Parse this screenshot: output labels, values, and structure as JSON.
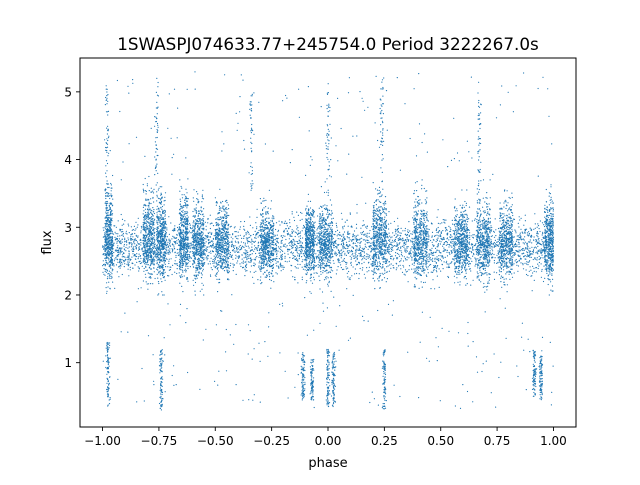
{
  "chart_data": {
    "type": "scatter",
    "title": "1SWASPJ074633.77+245754.0 Period 3222267.0s",
    "xlabel": "phase",
    "ylabel": "flux",
    "xlim": [
      -1.1,
      1.1
    ],
    "ylim": [
      0.05,
      5.5
    ],
    "x_ticks": [
      -1.0,
      -0.75,
      -0.5,
      -0.25,
      0.0,
      0.25,
      0.5,
      0.75,
      1.0
    ],
    "x_tick_labels": [
      "−1.00",
      "−0.75",
      "−0.50",
      "−0.25",
      "0.00",
      "0.25",
      "0.50",
      "0.75",
      "1.00"
    ],
    "y_ticks": [
      1,
      2,
      3,
      4,
      5
    ],
    "y_tick_labels": [
      "1",
      "2",
      "3",
      "4",
      "5"
    ],
    "grid": false,
    "legend": "none",
    "marker_color": "#1f77b4",
    "series": [
      {
        "x_range": [
          -1.0,
          1.0
        ],
        "core_flux_range": [
          2.1,
          3.7
        ],
        "core_flux_center": 2.7,
        "sparse_outlier_flux_range": [
          0.3,
          5.3
        ],
        "dense_bands": [
          {
            "phase": [
              -0.99,
              -0.955
            ],
            "flux": [
              2.0,
              3.8
            ]
          },
          {
            "phase": [
              -0.82,
              -0.77
            ],
            "flux": [
              2.0,
              3.75
            ]
          },
          {
            "phase": [
              -0.76,
              -0.72
            ],
            "flux": [
              2.0,
              3.7
            ]
          },
          {
            "phase": [
              -0.66,
              -0.62
            ],
            "flux": [
              2.05,
              3.7
            ]
          },
          {
            "phase": [
              -0.6,
              -0.55
            ],
            "flux": [
              2.0,
              3.65
            ]
          },
          {
            "phase": [
              -0.5,
              -0.44
            ],
            "flux": [
              2.05,
              3.6
            ]
          },
          {
            "phase": [
              -0.3,
              -0.24
            ],
            "flux": [
              2.1,
              3.55
            ]
          },
          {
            "phase": [
              -0.1,
              -0.06
            ],
            "flux": [
              2.1,
              3.5
            ]
          },
          {
            "phase": [
              -0.04,
              0.02
            ],
            "flux": [
              2.0,
              3.6
            ]
          },
          {
            "phase": [
              0.2,
              0.26
            ],
            "flux": [
              2.0,
              3.75
            ]
          },
          {
            "phase": [
              0.38,
              0.44
            ],
            "flux": [
              2.0,
              3.7
            ]
          },
          {
            "phase": [
              0.56,
              0.62
            ],
            "flux": [
              2.05,
              3.55
            ]
          },
          {
            "phase": [
              0.66,
              0.72
            ],
            "flux": [
              2.0,
              3.7
            ]
          },
          {
            "phase": [
              0.76,
              0.82
            ],
            "flux": [
              2.0,
              3.55
            ]
          },
          {
            "phase": [
              0.96,
              1.0
            ],
            "flux": [
              2.0,
              3.65
            ]
          }
        ],
        "low_flux_clusters": [
          {
            "phase": -0.975,
            "flux": [
              0.35,
              1.3
            ]
          },
          {
            "phase": -0.74,
            "flux": [
              0.3,
              1.2
            ]
          },
          {
            "phase": -0.11,
            "flux": [
              0.45,
              1.15
            ]
          },
          {
            "phase": -0.07,
            "flux": [
              0.45,
              1.05
            ]
          },
          {
            "phase": 0.0,
            "flux": [
              0.35,
              1.2
            ]
          },
          {
            "phase": 0.025,
            "flux": [
              0.35,
              1.15
            ]
          },
          {
            "phase": 0.25,
            "flux": [
              0.3,
              1.2
            ]
          },
          {
            "phase": 0.915,
            "flux": [
              0.5,
              1.2
            ]
          },
          {
            "phase": 0.945,
            "flux": [
              0.45,
              1.1
            ]
          }
        ],
        "high_flux_streaks": [
          {
            "phase": -0.98,
            "flux": [
              3.6,
              5.1
            ]
          },
          {
            "phase": -0.76,
            "flux": [
              3.6,
              5.2
            ]
          },
          {
            "phase": -0.34,
            "flux": [
              3.5,
              5.0
            ]
          },
          {
            "phase": 0.0,
            "flux": [
              3.5,
              5.0
            ]
          },
          {
            "phase": 0.24,
            "flux": [
              3.6,
              5.2
            ]
          },
          {
            "phase": 0.67,
            "flux": [
              3.5,
              5.0
            ]
          }
        ]
      }
    ]
  }
}
